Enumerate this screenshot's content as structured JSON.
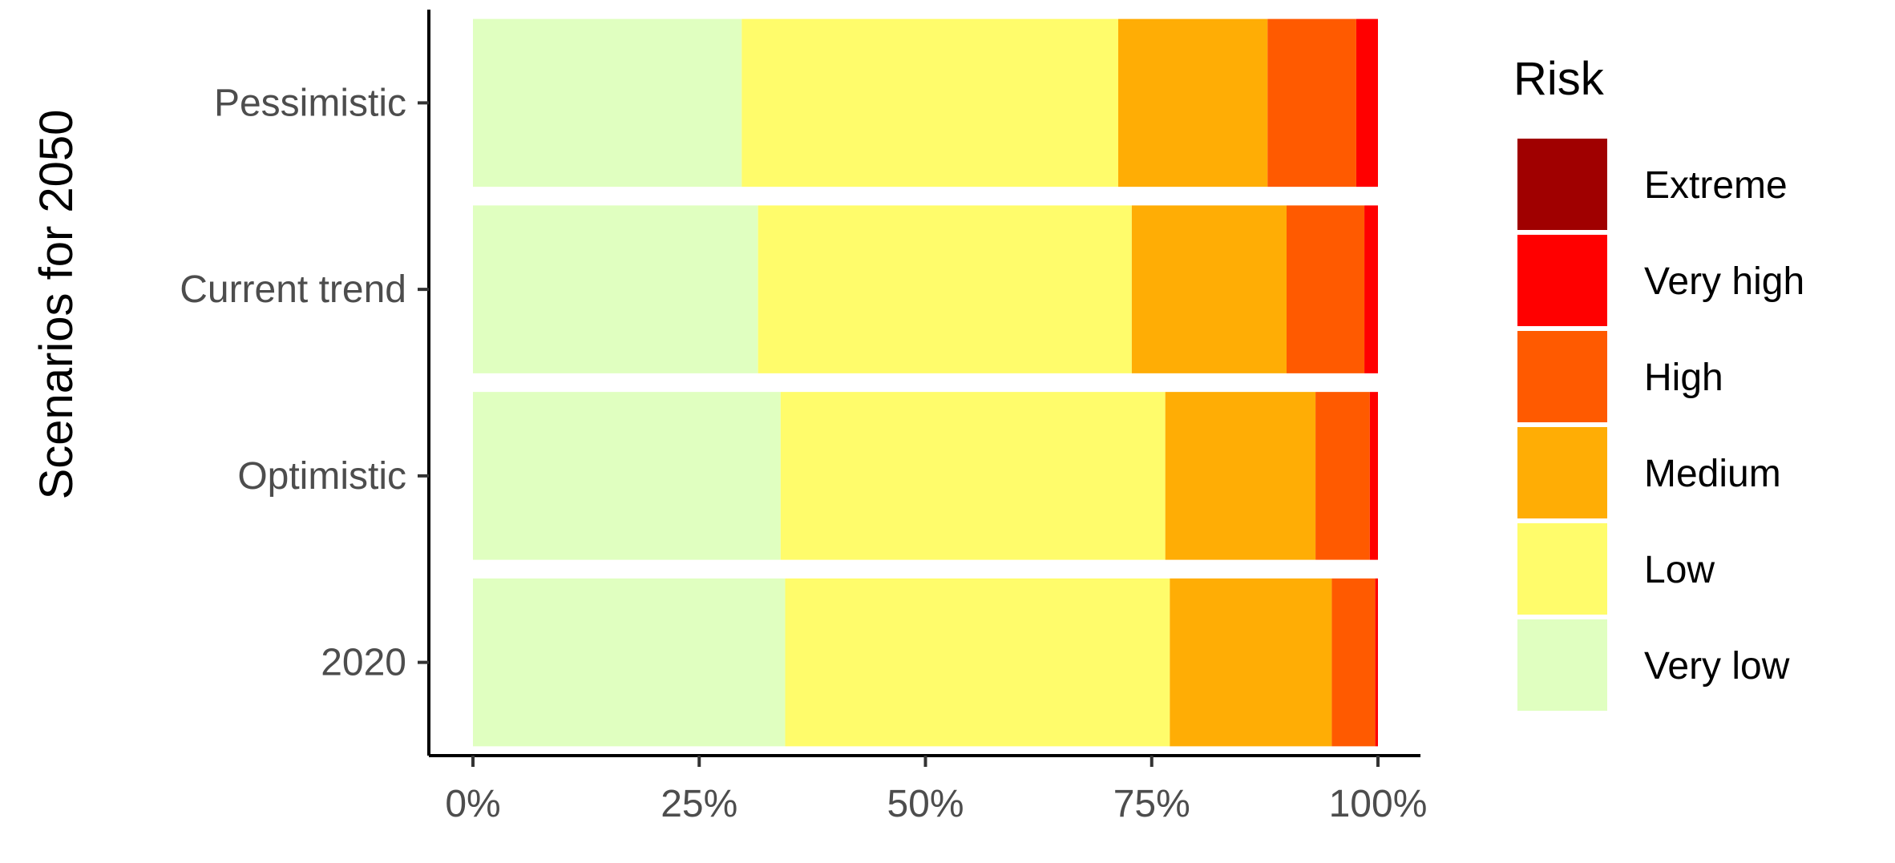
{
  "chart_data": {
    "type": "bar",
    "orientation": "horizontal",
    "stacked": true,
    "ylabel": "Scenarios for 2050",
    "xlabel": "",
    "xlim": [
      0,
      100
    ],
    "x_ticks": [
      "0%",
      "25%",
      "50%",
      "75%",
      "100%"
    ],
    "x_tick_values": [
      0,
      25,
      50,
      75,
      100
    ],
    "categories": [
      "Pessimistic",
      "Current trend",
      "Optimistic",
      "2020"
    ],
    "series": [
      {
        "name": "Very low",
        "color": "#E0FFC0",
        "values": [
          29.7,
          31.5,
          34.0,
          34.5
        ]
      },
      {
        "name": "Low",
        "color": "#FFFC6B",
        "values": [
          41.6,
          41.3,
          42.5,
          42.5
        ]
      },
      {
        "name": "Medium",
        "color": "#FFAD05",
        "values": [
          16.5,
          17.1,
          16.6,
          17.9
        ]
      },
      {
        "name": "High",
        "color": "#FF5A00",
        "values": [
          9.8,
          8.6,
          6.0,
          4.8
        ]
      },
      {
        "name": "Very high",
        "color": "#FF0000",
        "values": [
          2.4,
          1.5,
          0.9,
          0.3
        ]
      },
      {
        "name": "Extreme",
        "color": "#A00000",
        "values": [
          0.0,
          0.0,
          0.0,
          0.0
        ]
      }
    ],
    "legend": {
      "title": "Risk",
      "position": "right",
      "order": [
        "Extreme",
        "Very high",
        "High",
        "Medium",
        "Low",
        "Very low"
      ]
    },
    "grid": false
  }
}
